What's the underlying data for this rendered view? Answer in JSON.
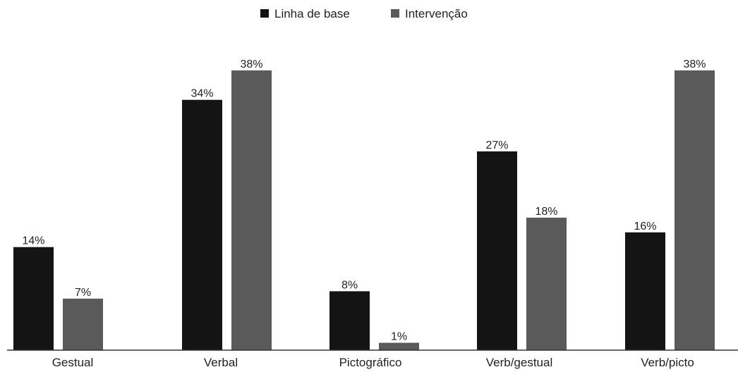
{
  "chart_data": {
    "type": "bar",
    "categories": [
      "Gestual",
      "Verbal",
      "Pictográfico",
      "Verb/gestual",
      "Verb/picto"
    ],
    "series": [
      {
        "name": "Linha de base",
        "values": [
          14,
          34,
          8,
          27,
          16
        ],
        "labels": [
          "14%",
          "34%",
          "8%",
          "27%",
          "16%"
        ],
        "color": "#141414"
      },
      {
        "name": "Intervenção",
        "values": [
          7,
          38,
          1,
          18,
          38
        ],
        "labels": [
          "7%",
          "38%",
          "1%",
          "18%",
          "38%"
        ],
        "color": "#5a5a5a"
      }
    ],
    "title": "",
    "xlabel": "",
    "ylabel": "",
    "ylim": [
      0,
      40
    ],
    "grid": false,
    "legend_position": "top-center"
  }
}
